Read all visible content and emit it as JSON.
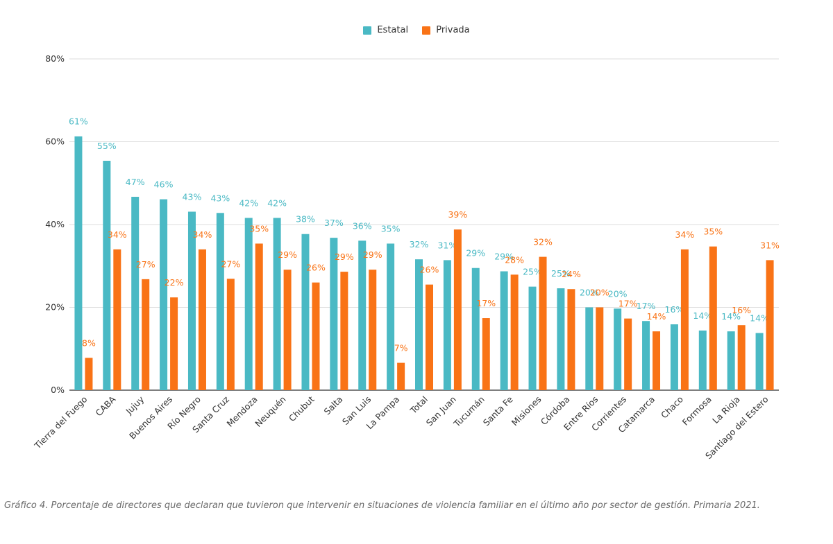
{
  "chart_data": {
    "type": "bar",
    "categories": [
      "Tierra del Fuego",
      "CABA",
      "Jujuy",
      "Buenos Aires",
      "Río Negro",
      "Santa Cruz",
      "Mendoza",
      "Neuquén",
      "Chubut",
      "Salta",
      "San Luis",
      "La Pampa",
      "Total",
      "San Juan",
      "Tucumán",
      "Santa Fe",
      "Misiones",
      "Córdoba",
      "Entre Ríos",
      "Corrientes",
      "Catamarca",
      "Chaco",
      "Formosa",
      "La Rioja",
      "Santiago del Estero"
    ],
    "series": [
      {
        "name": "Estatal",
        "color": "#4ab9c4",
        "values": [
          61.3,
          55.4,
          46.7,
          46.1,
          43.1,
          42.8,
          41.6,
          41.6,
          37.7,
          36.8,
          36.1,
          35.4,
          31.6,
          31.4,
          29.5,
          28.7,
          25.0,
          24.6,
          20.0,
          19.7,
          16.7,
          15.9,
          14.4,
          14.2,
          13.8
        ],
        "labels": [
          "61%",
          "55%",
          "47%",
          "46%",
          "43%",
          "43%",
          "42%",
          "42%",
          "38%",
          "37%",
          "36%",
          "35%",
          "32%",
          "31%",
          "29%",
          "29%",
          "25%",
          "25%",
          "20%",
          "20%",
          "17%",
          "16%",
          "14%",
          "14%",
          "14%"
        ]
      },
      {
        "name": "Privada",
        "color": "#f97316",
        "values": [
          7.8,
          34.0,
          26.8,
          22.4,
          34.0,
          26.9,
          35.4,
          29.1,
          26.0,
          28.6,
          29.1,
          6.6,
          25.5,
          38.8,
          17.4,
          27.9,
          32.2,
          24.4,
          20.0,
          17.3,
          14.2,
          34.0,
          34.7,
          15.7,
          31.4
        ],
        "labels": [
          "8%",
          "34%",
          "27%",
          "22%",
          "34%",
          "27%",
          "35%",
          "29%",
          "26%",
          "29%",
          "29%",
          "7%",
          "26%",
          "39%",
          "17%",
          "28%",
          "32%",
          "24%",
          "20%",
          "17%",
          "14%",
          "34%",
          "35%",
          "16%",
          "31%"
        ]
      }
    ],
    "ylim": [
      0,
      80
    ],
    "yticks": [
      "0%",
      "20%",
      "40%",
      "60%",
      "80%"
    ],
    "ytick_values": [
      0,
      20,
      40,
      60,
      80
    ],
    "grid": true,
    "legend_position": "top-center"
  },
  "caption": "Gráfico 4. Porcentaje de directores que declaran que tuvieron que intervenir en situaciones de violencia familiar en el último año por sector de gestión. Primaria 2021."
}
